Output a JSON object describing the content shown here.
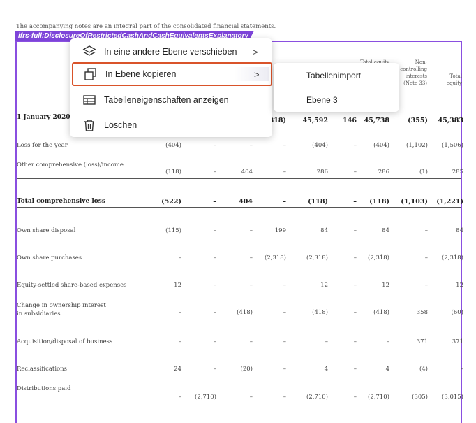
{
  "document": {
    "note": "The accompanying notes are an integral part of the consolidated financial statements.",
    "tag_label": "ifrs-full:DisclosureOfRestrictedCashAndCashEquivalentsExplanatory"
  },
  "column_headers": {
    "total_equity_attr": "Total equity",
    "non_controlling": "Non-controlling interests (Note 33)",
    "non_controlling_lines": [
      "Non-",
      "controlling",
      "interests",
      "(Note 33)"
    ],
    "total_equity_lines": [
      "Total",
      "equity"
    ]
  },
  "rows": [
    {
      "label": "1 January 2020",
      "bold": true,
      "values": [
        "",
        "",
        "",
        "318)",
        "45,592",
        "146",
        "45,738",
        "(355)",
        "45,383"
      ]
    },
    {
      "label": "Loss for the year",
      "bold": false,
      "values": [
        "(404)",
        "–",
        "–",
        "–",
        "(404)",
        "–",
        "(404)",
        "(1,102)",
        "(1,506)"
      ]
    },
    {
      "label": "Other comprehensive (loss)/income",
      "bold": false,
      "values": [
        "(118)",
        "–",
        "404",
        "–",
        "286",
        "–",
        "286",
        "(1)",
        "285"
      ]
    },
    {
      "label": "Total comprehensive loss",
      "bold": true,
      "values": [
        "(522)",
        "–",
        "404",
        "–",
        "(118)",
        "–",
        "(118)",
        "(1,103)",
        "(1,221)"
      ]
    },
    {
      "label": "Own share disposal",
      "bold": false,
      "values": [
        "(115)",
        "–",
        "–",
        "199",
        "84",
        "–",
        "84",
        "–",
        "84"
      ]
    },
    {
      "label": "Own share purchases",
      "bold": false,
      "values": [
        "–",
        "–",
        "–",
        "(2,318)",
        "(2,318)",
        "–",
        "(2,318)",
        "–",
        "(2,318)"
      ]
    },
    {
      "label": "Equity-settled share-based expenses",
      "bold": false,
      "values": [
        "12",
        "–",
        "–",
        "–",
        "12",
        "–",
        "12",
        "–",
        "12"
      ]
    },
    {
      "label": "Change in ownership interest",
      "label2": "in subsidiaries",
      "bold": false,
      "values": [
        "–",
        "–",
        "(418)",
        "–",
        "(418)",
        "–",
        "(418)",
        "358",
        "(60)"
      ]
    },
    {
      "label": "Acquisition/disposal of business",
      "bold": false,
      "values": [
        "–",
        "–",
        "–",
        "–",
        "–",
        "–",
        "–",
        "371",
        "371"
      ]
    },
    {
      "label": "Reclassifications",
      "bold": false,
      "values": [
        "24",
        "–",
        "(20)",
        "–",
        "4",
        "–",
        "4",
        "(4)",
        "–"
      ]
    },
    {
      "label": "Distributions paid",
      "bold": false,
      "values": [
        "–",
        "(2,710)",
        "–",
        "–",
        "(2,710)",
        "–",
        "(2,710)",
        "(305)",
        "(3,015)"
      ]
    }
  ],
  "context_menu": {
    "items": [
      {
        "label": "In eine andere Ebene verschieben",
        "icon": "layers-icon",
        "has_submenu": true
      },
      {
        "label": "In Ebene kopieren",
        "icon": "copy-icon",
        "has_submenu": true
      },
      {
        "label": "Tabelleneigenschaften anzeigen",
        "icon": "table-icon",
        "has_submenu": false
      },
      {
        "label": "Löschen",
        "icon": "trash-icon",
        "has_submenu": false
      }
    ],
    "arrow": ">"
  },
  "submenu": {
    "items": [
      {
        "label": "Tabellenimport"
      },
      {
        "label": "Ebene 3"
      }
    ]
  },
  "colors": {
    "tag_purple": "#7d44d9",
    "frame_purple": "#8a4fe0",
    "active_border": "#d9532a",
    "header_rule": "#2aa58f"
  }
}
